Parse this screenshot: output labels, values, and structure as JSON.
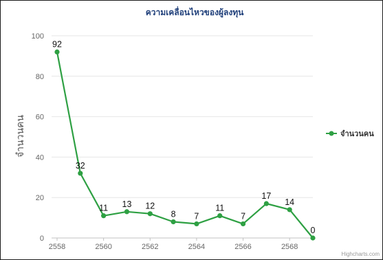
{
  "chart_data": {
    "type": "line",
    "title": "ความเคลื่อนไหวของผู้ลงทุน",
    "ylabel": "จำนวนคน",
    "xlabel": "",
    "x": [
      2558,
      2559,
      2560,
      2561,
      2562,
      2563,
      2564,
      2565,
      2566,
      2567,
      2568,
      2569
    ],
    "series": [
      {
        "name": "จำนวนคน",
        "values": [
          92,
          32,
          11,
          13,
          12,
          8,
          7,
          11,
          7,
          17,
          14,
          0
        ]
      }
    ],
    "xlim": [
      2558,
      2569
    ],
    "ylim": [
      0,
      100
    ],
    "x_ticks": [
      "2558",
      "2560",
      "2562",
      "2564",
      "2566",
      "2568"
    ],
    "y_ticks": [
      "0",
      "20",
      "40",
      "60",
      "80",
      "100"
    ],
    "grid": true,
    "legend": "right",
    "data_labels": true,
    "colors": {
      "series": "#2ea043",
      "title": "#1f3f7a",
      "grid": "#e6e6e6"
    }
  },
  "credits": "Highcharts.com"
}
